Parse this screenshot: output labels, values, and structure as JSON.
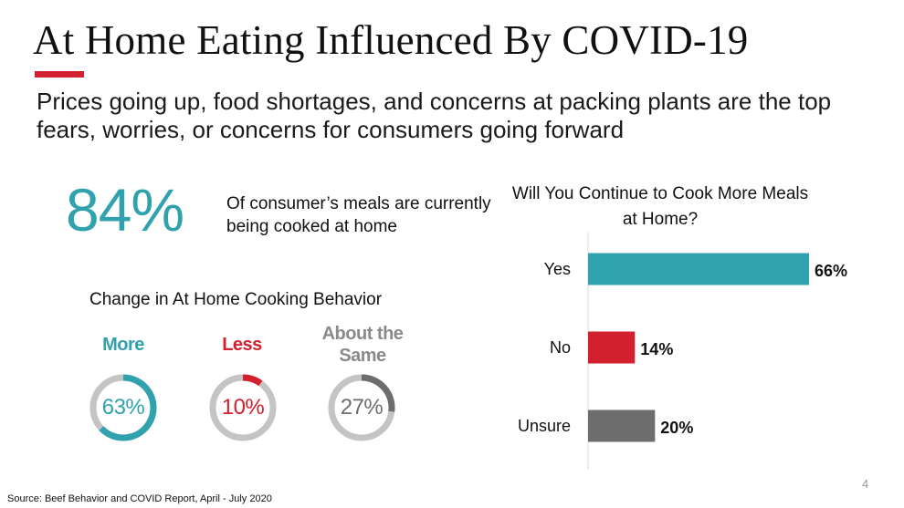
{
  "slide": {
    "title": "At Home Eating Influenced By COVID-19",
    "subtitle": "Prices going up, food shortages, and concerns at packing plants are the top fears, worries, or concerns for consumers going forward",
    "page_number": "4",
    "source": "Source: Beef Behavior and COVID Report, April - July 2020"
  },
  "stat": {
    "value": "84%",
    "description": "Of consumer’s meals are currently being cooked at home"
  },
  "colors": {
    "teal": "#2fa2ad",
    "red": "#d2202e",
    "gray": "#6d6d6d",
    "ring": "#c4c4c4"
  },
  "chart_data": [
    {
      "type": "pie",
      "title": "Change in At Home Cooking Behavior",
      "categories": [
        "More",
        "Less",
        "About the Same"
      ],
      "values": [
        63,
        10,
        27
      ],
      "value_labels": [
        "63%",
        "10%",
        "27%"
      ],
      "colors": [
        "#2fa2ad",
        "#d2202e",
        "#6d6d6d"
      ]
    },
    {
      "type": "bar",
      "orientation": "horizontal",
      "title": "Will You Continue to Cook More Meals at Home?",
      "categories": [
        "Yes",
        "No",
        "Unsure"
      ],
      "values": [
        66,
        14,
        20
      ],
      "value_labels": [
        "66%",
        "14%",
        "20%"
      ],
      "colors": [
        "#2fa2ad",
        "#d2202e",
        "#6d6d6d"
      ],
      "xlim": [
        0,
        66
      ],
      "grid": false
    }
  ]
}
